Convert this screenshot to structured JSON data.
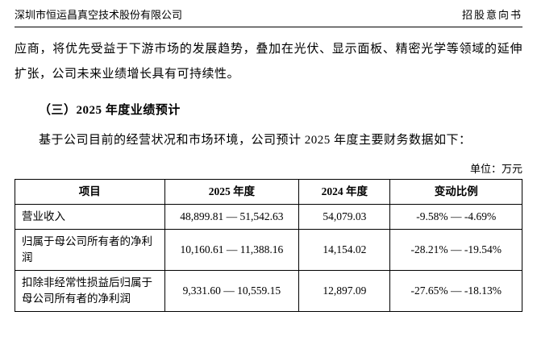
{
  "header": {
    "company": "深圳市恒运昌真空技术股份有限公司",
    "doc_type": "招股意向书"
  },
  "content": {
    "p1": "应商，将优先受益于下游市场的发展趋势，叠加在光伏、显示面板、精密光学等领域的延伸扩张，公司未来业绩增长具有可持续性。",
    "heading": "（三）2025 年度业绩预计",
    "p2": "基于公司目前的经营状况和市场环境，公司预计 2025 年度主要财务数据如下：",
    "unit": "单位：万元"
  },
  "table": {
    "headers": [
      "项目",
      "2025 年度",
      "2024 年度",
      "变动比例"
    ],
    "rows": [
      [
        "营业收入",
        "48,899.81 — 51,542.63",
        "54,079.03",
        "-9.58% — -4.69%"
      ],
      [
        "归属于母公司所有者的净利润",
        "10,160.61 — 11,388.16",
        "14,154.02",
        "-28.21% — -19.54%"
      ],
      [
        "扣除非经常性损益后归属于母公司所有者的净利润",
        "9,331.60 — 10,559.15",
        "12,897.09",
        "-27.65% — -18.13%"
      ]
    ]
  }
}
